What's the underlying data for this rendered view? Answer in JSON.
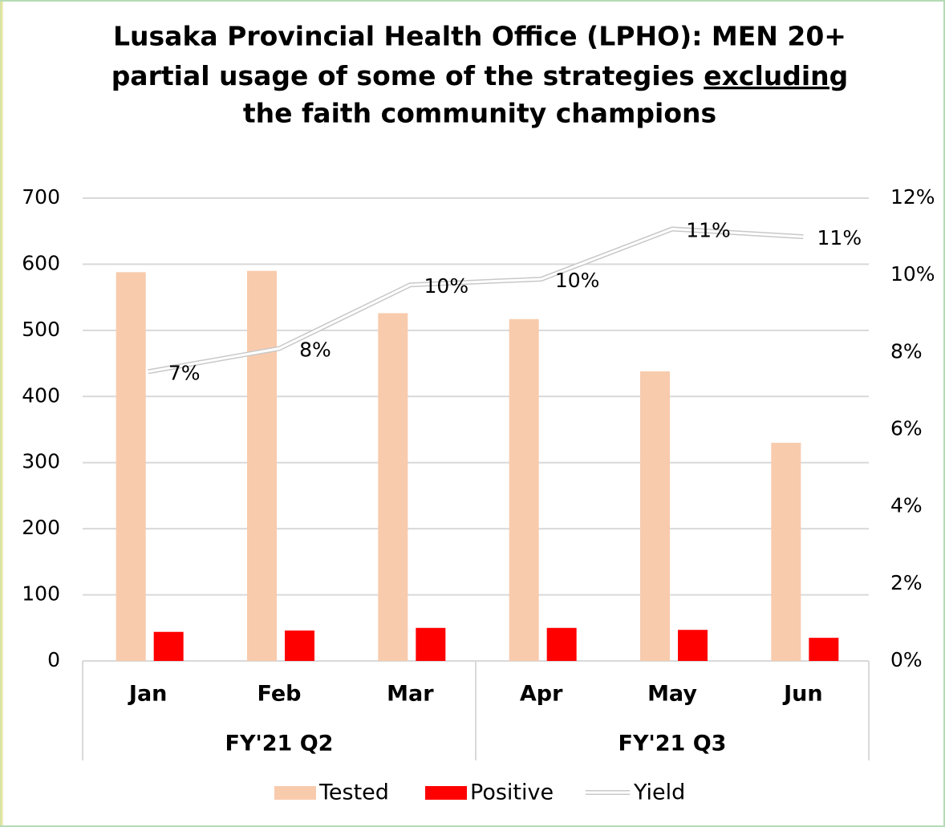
{
  "chart_data": {
    "type": "bar",
    "title_lines": [
      "Lusaka Provincial Health Office (LPHO): MEN 20+",
      "partial usage of some of the strategies ",
      "the faith community champions"
    ],
    "title_underlined": "excluding",
    "groups": [
      {
        "label": "FY'21 Q2",
        "categories": [
          "Jan",
          "Feb",
          "Mar"
        ]
      },
      {
        "label": "FY'21 Q3",
        "categories": [
          "Apr",
          "May",
          "Jun"
        ]
      }
    ],
    "series": [
      {
        "name": "Tested",
        "color": "#f8cbad",
        "values": [
          588,
          590,
          526,
          517,
          438,
          330
        ]
      },
      {
        "name": "Positive",
        "color": "#ff0000",
        "values": [
          44,
          46,
          50,
          50,
          47,
          35
        ]
      },
      {
        "name": "Yield",
        "type": "line",
        "axis": "y2",
        "color": "#ffffff",
        "values": [
          7.5,
          8.1,
          9.75,
          9.9,
          11.2,
          11.0
        ],
        "value_labels": [
          "7%",
          "8%",
          "10%",
          "10%",
          "11%",
          "11%"
        ]
      }
    ],
    "ylim": [
      0,
      700
    ],
    "yticks": [
      0,
      100,
      200,
      300,
      400,
      500,
      600,
      700
    ],
    "y2lim": [
      0,
      12
    ],
    "y2ticks": [
      {
        "value": 0,
        "label": "0%"
      },
      {
        "value": 2,
        "label": "2%"
      },
      {
        "value": 4,
        "label": "4%"
      },
      {
        "value": 6,
        "label": "6%"
      },
      {
        "value": 8,
        "label": "8%"
      },
      {
        "value": 10,
        "label": "10%"
      },
      {
        "value": 12,
        "label": "12%"
      }
    ],
    "grid": true,
    "legend": "bottom"
  }
}
